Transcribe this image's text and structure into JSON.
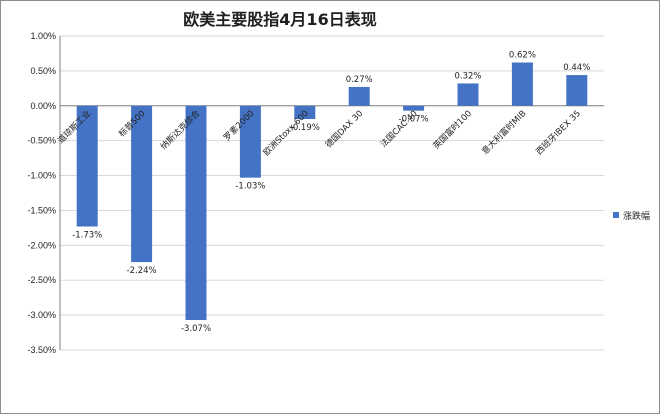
{
  "chart_data": {
    "type": "bar",
    "title": "欧美主要股指4月16日表现",
    "categories": [
      "道琼斯工业",
      "标普500",
      "纳斯达克综合",
      "罗素2000",
      "欧洲Stoxx 600",
      "德国DAX 30",
      "法国CAC 40",
      "英国富时100",
      "意大利富时MIB",
      "西班牙IBEX 35"
    ],
    "series": [
      {
        "name": "涨跌幅",
        "values": [
          -1.73,
          -2.24,
          -3.07,
          -1.03,
          -0.19,
          0.27,
          -0.07,
          0.32,
          0.62,
          0.44
        ],
        "value_labels": [
          "-1.73%",
          "-2.24%",
          "-3.07%",
          "-1.03%",
          "-0.19%",
          "0.27%",
          "-0.07%",
          "0.32%",
          "0.62%",
          "0.44%"
        ],
        "color": "#4472c4"
      }
    ],
    "ylim": [
      -3.5,
      1.0
    ],
    "yticks": [
      "1.00%",
      "0.50%",
      "0.00%",
      "-0.50%",
      "-1.00%",
      "-1.50%",
      "-2.00%",
      "-2.50%",
      "-3.00%",
      "-3.50%"
    ],
    "ytick_values": [
      1.0,
      0.5,
      0.0,
      -0.5,
      -1.0,
      -1.5,
      -2.0,
      -2.5,
      -3.0,
      -3.5
    ],
    "grid": "horizontal",
    "legend": "right"
  }
}
